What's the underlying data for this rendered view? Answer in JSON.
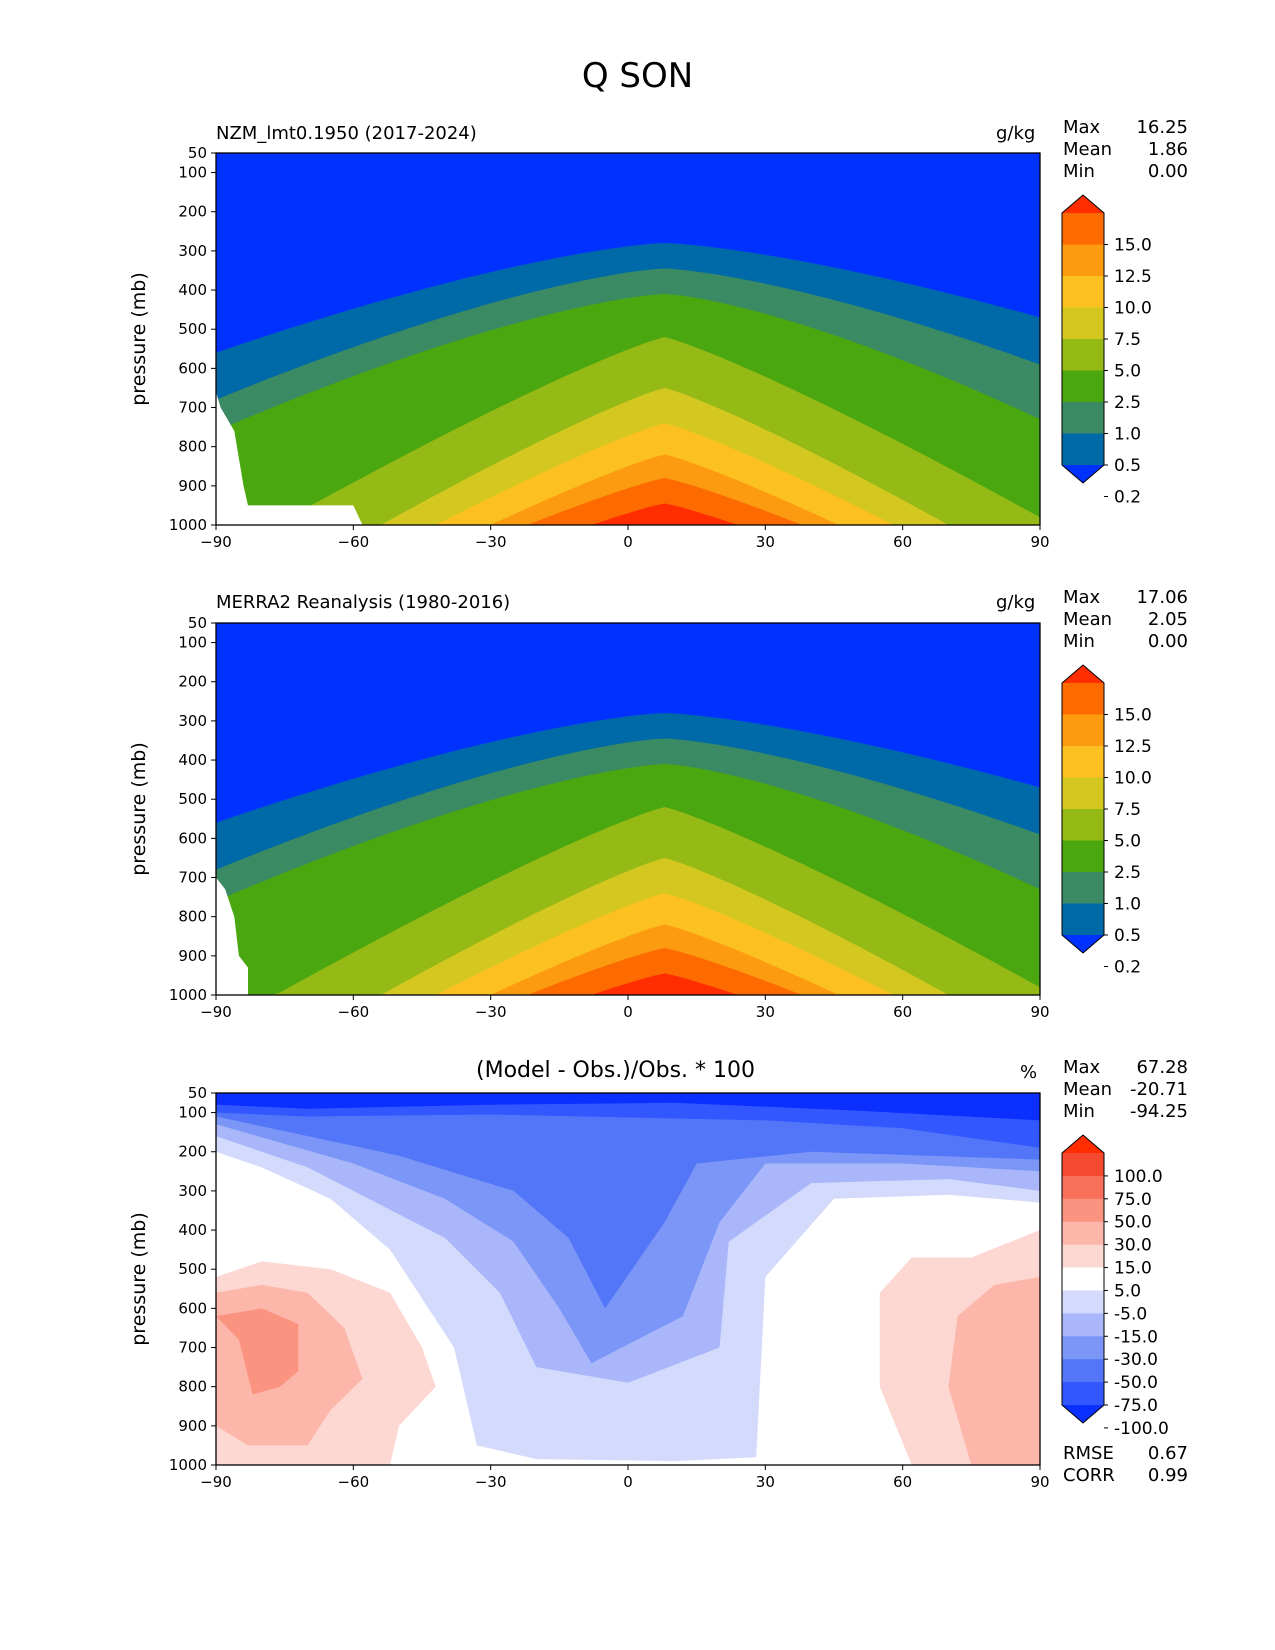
{
  "figure_title": "Q SON",
  "colors": {
    "q_levels": [
      "#0032ff",
      "#006aa8",
      "#3a8a64",
      "#4aa710",
      "#95b915",
      "#d4c820",
      "#fcc020",
      "#fc9a10",
      "#fc6a00",
      "#ff2d00"
    ],
    "diff_levels": [
      "#0a2fff",
      "#3357ff",
      "#5276f7",
      "#7b96f7",
      "#a9b7fa",
      "#d4dafc",
      "#ffffff",
      "#fdd7d2",
      "#fcb6aa",
      "#fa9481",
      "#f8705a",
      "#f64a30",
      "#ff2d00"
    ]
  },
  "chart_data": [
    {
      "type": "contour",
      "name": "model",
      "title": "NZM_lmt0.1950 (2017-2024)",
      "unit": "g/kg",
      "ylabel": "pressure (mb)",
      "x_ticks": [
        "−90",
        "−60",
        "−30",
        "0",
        "30",
        "60",
        "90"
      ],
      "y_ticks": [
        "50",
        "100",
        "200",
        "300",
        "400",
        "500",
        "600",
        "700",
        "800",
        "900",
        "1000"
      ],
      "xlim": [
        -90,
        90
      ],
      "ylim": [
        1000,
        50
      ],
      "stats": [
        {
          "label": "Max",
          "value": "16.25"
        },
        {
          "label": "Mean",
          "value": "1.86"
        },
        {
          "label": "Min",
          "value": "0.00"
        }
      ],
      "colorbar_labels": [
        "15.0",
        "12.5",
        "10.0",
        "7.5",
        "5.0",
        "2.5",
        "1.0",
        "0.5",
        "0.2"
      ]
    },
    {
      "type": "contour",
      "name": "obs",
      "title": "MERRA2 Reanalysis (1980-2016)",
      "unit": "g/kg",
      "ylabel": "pressure (mb)",
      "x_ticks": [
        "−90",
        "−60",
        "−30",
        "0",
        "30",
        "60",
        "90"
      ],
      "y_ticks": [
        "50",
        "100",
        "200",
        "300",
        "400",
        "500",
        "600",
        "700",
        "800",
        "900",
        "1000"
      ],
      "xlim": [
        -90,
        90
      ],
      "ylim": [
        1000,
        50
      ],
      "stats": [
        {
          "label": "Max",
          "value": "17.06"
        },
        {
          "label": "Mean",
          "value": "2.05"
        },
        {
          "label": "Min",
          "value": "0.00"
        }
      ],
      "colorbar_labels": [
        "15.0",
        "12.5",
        "10.0",
        "7.5",
        "5.0",
        "2.5",
        "1.0",
        "0.5",
        "0.2"
      ]
    },
    {
      "type": "contour",
      "name": "diff",
      "title": "(Model - Obs.)/Obs. * 100",
      "unit": "%",
      "ylabel": "pressure (mb)",
      "x_ticks": [
        "−90",
        "−60",
        "−30",
        "0",
        "30",
        "60",
        "90"
      ],
      "y_ticks": [
        "50",
        "100",
        "200",
        "300",
        "400",
        "500",
        "600",
        "700",
        "800",
        "900",
        "1000"
      ],
      "xlim": [
        -90,
        90
      ],
      "ylim": [
        1000,
        50
      ],
      "stats": [
        {
          "label": "Max",
          "value": "67.28"
        },
        {
          "label": "Mean",
          "value": "-20.71"
        },
        {
          "label": "Min",
          "value": "-94.25"
        }
      ],
      "extra_stats": [
        {
          "label": "RMSE",
          "value": "0.67"
        },
        {
          "label": "CORR",
          "value": "0.99"
        }
      ],
      "colorbar_labels": [
        "100.0",
        "75.0",
        "50.0",
        "30.0",
        "15.0",
        "5.0",
        "-5.0",
        "-15.0",
        "-30.0",
        "-50.0",
        "-75.0",
        "-100.0"
      ]
    }
  ]
}
